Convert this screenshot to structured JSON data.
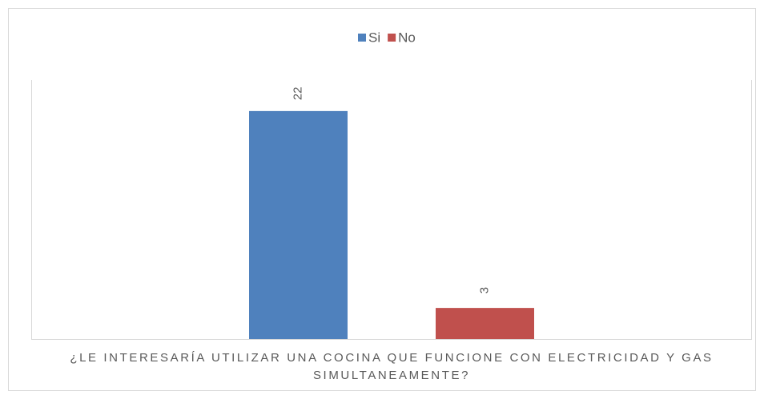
{
  "chart_data": {
    "type": "bar",
    "categories": [
      "¿LE INTERESARÍA UTILIZAR UNA COCINA QUE FUNCIONE CON ELECTRICIDAD Y GAS SIMULTANEAMENTE?"
    ],
    "series": [
      {
        "name": "Si",
        "color": "#4f81bd",
        "values": [
          22
        ]
      },
      {
        "name": "No",
        "color": "#c0504d",
        "values": [
          3
        ]
      }
    ],
    "ylim": [
      0,
      25
    ],
    "legend": "top",
    "grid": false
  }
}
